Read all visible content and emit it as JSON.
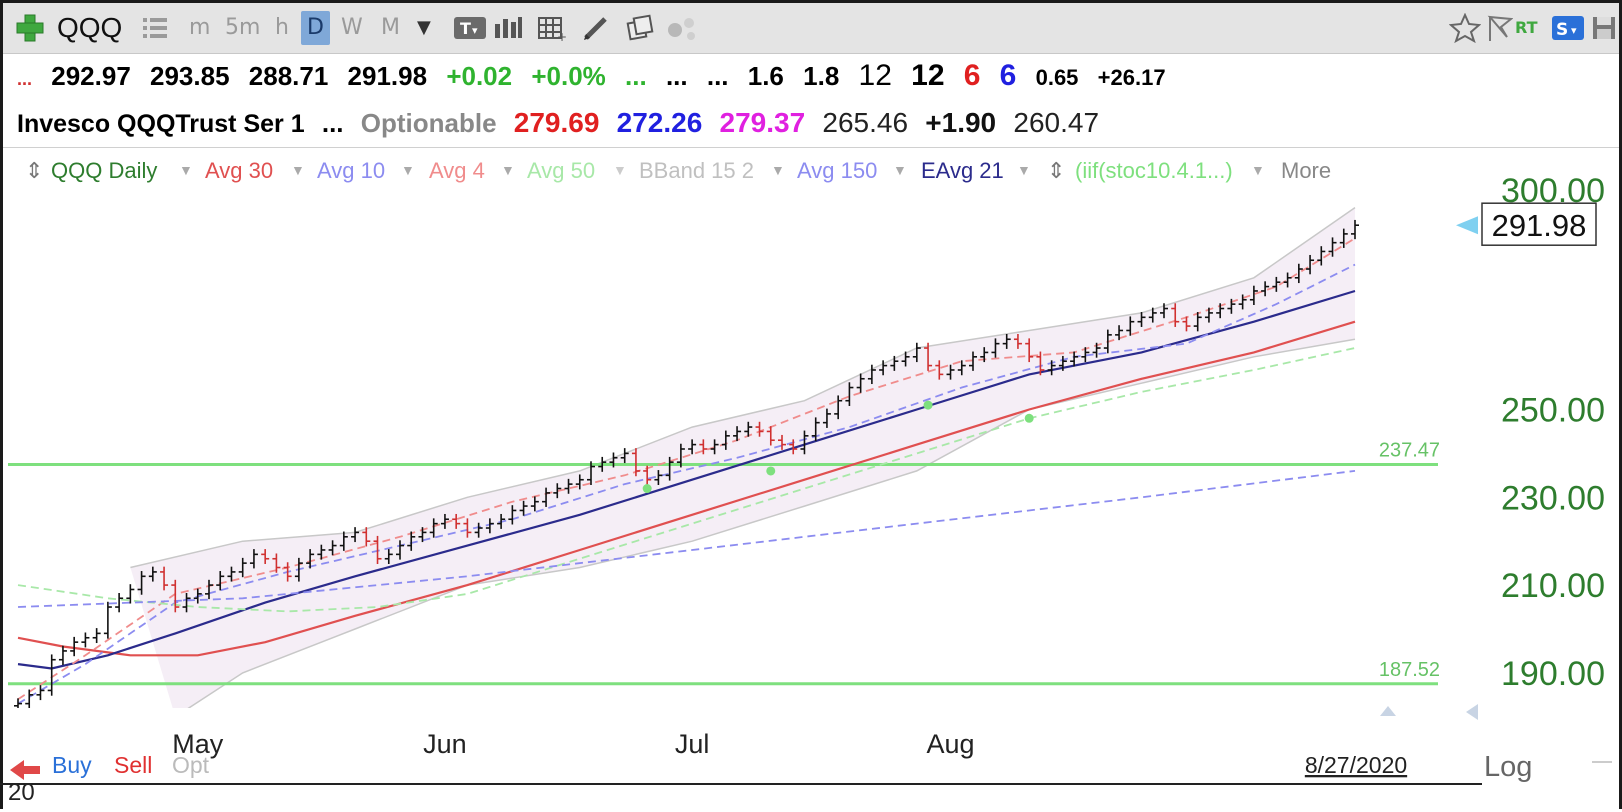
{
  "toolbar": {
    "symbol": "QQQ",
    "timeframes": [
      "m",
      "5m",
      "h",
      "D",
      "W",
      "M"
    ],
    "rt_label": "RT"
  },
  "quote": {
    "open": "292.97",
    "high": "293.85",
    "low": "288.71",
    "close": "291.98",
    "change": "+0.02",
    "change_pct": "+0.0%",
    "dots1": "...",
    "dots2": "...",
    "dots3": "...",
    "v1": "1.6",
    "v2": "1.8",
    "v3": "12",
    "v4": "12",
    "v5": "6",
    "v6": "6",
    "v7": "0.65",
    "v8": "+26.17",
    "name": "Invesco QQQTrust Ser 1",
    "dots4": "...",
    "optionable": "Optionable",
    "p1": "279.69",
    "p2": "272.26",
    "p3": "279.37",
    "p4": "265.46",
    "p5": "+1.90",
    "p6": "260.47"
  },
  "studies": [
    {
      "label": "QQQ Daily",
      "color": "#2e7d2e"
    },
    {
      "label": "Avg 30",
      "color": "#e05050"
    },
    {
      "label": "Avg 10",
      "color": "#8c8cf0"
    },
    {
      "label": "Avg 4",
      "color": "#f08c8c"
    },
    {
      "label": "Avg 50",
      "color": "#a8e8a8"
    },
    {
      "label": "BBand 15 2",
      "color": "#c0c0c0"
    },
    {
      "label": "Avg 150",
      "color": "#8c8cf0"
    },
    {
      "label": "EAvg 21",
      "color": "#2b2b8c"
    },
    {
      "label": "(iif(stoc10.4.1...)",
      "color": "#7ee07e"
    },
    {
      "label": "More",
      "color": "#888888"
    }
  ],
  "chart_data": {
    "type": "bar",
    "symbol": "QQQ",
    "interval": "Daily",
    "x_range": [
      "2020-04-08",
      "2020-08-27"
    ],
    "ylim": [
      182,
      300
    ],
    "y_ticks": [
      "300.00",
      "250.00",
      "230.00",
      "210.00",
      "190.00"
    ],
    "x_labels": [
      "May",
      "Jun",
      "Jul",
      "Aug"
    ],
    "last_price": "291.98",
    "last_date": "8/27/2020",
    "horizontal_lines": [
      {
        "value": 237.47,
        "label": "237.47",
        "color": "#7ee07e"
      },
      {
        "value": 187.52,
        "label": "187.52",
        "color": "#7ee07e"
      }
    ],
    "closes": [
      183,
      185,
      186,
      193,
      195,
      197,
      198,
      199,
      205,
      207,
      209,
      212,
      213,
      210,
      205,
      207,
      208,
      210,
      212,
      213,
      215,
      217,
      216,
      214,
      212,
      215,
      217,
      218,
      219,
      221,
      222,
      220,
      216,
      217,
      219,
      221,
      222,
      224,
      225,
      224,
      222,
      223,
      224,
      225,
      227,
      228,
      229,
      231,
      232,
      233,
      234,
      237,
      238,
      239,
      240,
      236,
      234,
      235,
      238,
      241,
      242,
      241,
      242,
      244,
      245,
      246,
      245,
      243,
      242,
      241,
      244,
      247,
      249,
      252,
      255,
      257,
      259,
      260,
      261,
      262,
      264,
      260,
      258,
      259,
      260,
      262,
      263,
      265,
      266,
      265,
      262,
      259,
      260,
      261,
      262,
      263,
      264,
      267,
      268,
      270,
      271,
      272,
      273,
      270,
      269,
      271,
      272,
      273,
      274,
      275,
      277,
      278,
      279,
      280,
      282,
      284,
      286,
      288,
      290,
      291.98
    ],
    "moving_averages": [
      {
        "name": "Avg 30",
        "color": "#e05050",
        "style": "solid",
        "values": [
          [
            0,
            198
          ],
          [
            4,
            196
          ],
          [
            10,
            194
          ],
          [
            16,
            194
          ],
          [
            22,
            197
          ],
          [
            30,
            203
          ],
          [
            40,
            210
          ],
          [
            50,
            218
          ],
          [
            60,
            226
          ],
          [
            70,
            234
          ],
          [
            80,
            242
          ],
          [
            90,
            250
          ],
          [
            100,
            257
          ],
          [
            110,
            263
          ],
          [
            119,
            270
          ]
        ]
      },
      {
        "name": "EAvg 21",
        "color": "#2b2b8c",
        "style": "solid",
        "values": [
          [
            0,
            192
          ],
          [
            3,
            191
          ],
          [
            8,
            194
          ],
          [
            14,
            199
          ],
          [
            22,
            206
          ],
          [
            30,
            212
          ],
          [
            40,
            219
          ],
          [
            50,
            226
          ],
          [
            60,
            234
          ],
          [
            70,
            242
          ],
          [
            80,
            250
          ],
          [
            90,
            258
          ],
          [
            100,
            263
          ],
          [
            110,
            270
          ],
          [
            119,
            277
          ]
        ]
      },
      {
        "name": "Avg 10",
        "color": "#8c8cf0",
        "style": "dashed",
        "values": [
          [
            0,
            183
          ],
          [
            6,
            192
          ],
          [
            14,
            206
          ],
          [
            24,
            213
          ],
          [
            34,
            219
          ],
          [
            44,
            225
          ],
          [
            54,
            233
          ],
          [
            64,
            239
          ],
          [
            74,
            246
          ],
          [
            84,
            255
          ],
          [
            94,
            262
          ],
          [
            104,
            265
          ],
          [
            112,
            274
          ],
          [
            119,
            283
          ]
        ]
      },
      {
        "name": "Avg 4",
        "color": "#f08c8c",
        "style": "dashed",
        "values": [
          [
            0,
            184
          ],
          [
            6,
            194
          ],
          [
            14,
            208
          ],
          [
            24,
            214
          ],
          [
            34,
            221
          ],
          [
            44,
            229
          ],
          [
            54,
            235
          ],
          [
            64,
            243
          ],
          [
            74,
            253
          ],
          [
            84,
            261
          ],
          [
            94,
            263
          ],
          [
            104,
            271
          ],
          [
            112,
            278
          ],
          [
            119,
            289
          ]
        ]
      },
      {
        "name": "Avg 50",
        "color": "#a8e8a8",
        "style": "dashed",
        "values": [
          [
            0,
            210
          ],
          [
            8,
            207
          ],
          [
            16,
            205
          ],
          [
            24,
            204
          ],
          [
            32,
            205
          ],
          [
            40,
            208
          ],
          [
            50,
            216
          ],
          [
            60,
            224
          ],
          [
            70,
            232
          ],
          [
            80,
            240
          ],
          [
            90,
            248
          ],
          [
            100,
            254
          ],
          [
            110,
            259
          ],
          [
            119,
            264
          ]
        ]
      },
      {
        "name": "Avg 150",
        "color": "#8c8cf0",
        "style": "dashed",
        "values": [
          [
            0,
            205
          ],
          [
            20,
            207
          ],
          [
            40,
            212
          ],
          [
            60,
            218
          ],
          [
            80,
            224
          ],
          [
            100,
            230
          ],
          [
            119,
            236
          ]
        ]
      }
    ],
    "bbands": {
      "upper": [
        [
          10,
          214
        ],
        [
          20,
          220
        ],
        [
          30,
          222
        ],
        [
          40,
          230
        ],
        [
          50,
          236
        ],
        [
          60,
          246
        ],
        [
          70,
          252
        ],
        [
          80,
          264
        ],
        [
          90,
          268
        ],
        [
          100,
          272
        ],
        [
          110,
          280
        ],
        [
          119,
          296
        ]
      ],
      "lower": [
        [
          14,
          180
        ],
        [
          20,
          190
        ],
        [
          30,
          200
        ],
        [
          40,
          210
        ],
        [
          50,
          214
        ],
        [
          60,
          220
        ],
        [
          70,
          228
        ],
        [
          80,
          236
        ],
        [
          90,
          250
        ],
        [
          100,
          256
        ],
        [
          110,
          262
        ],
        [
          119,
          266
        ]
      ]
    },
    "signal_dots": [
      [
        56,
        232
      ],
      [
        67,
        236
      ],
      [
        81,
        251
      ],
      [
        90,
        248
      ]
    ],
    "bottom_bar": {
      "buy": "Buy",
      "sell": "Sell",
      "opt": "Opt",
      "year": "20",
      "log": "Log"
    }
  }
}
